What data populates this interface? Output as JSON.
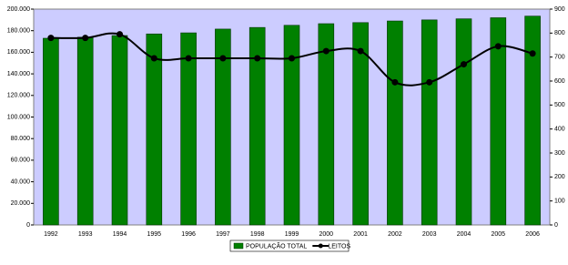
{
  "chart_data": {
    "type": "bar-line",
    "categories": [
      "1992",
      "1993",
      "1994",
      "1995",
      "1996",
      "1997",
      "1998",
      "1999",
      "2000",
      "2001",
      "2002",
      "2003",
      "2004",
      "2005",
      "2006"
    ],
    "series": [
      {
        "name": "POPULAÇÃO TOTAL",
        "color": "#008000",
        "type": "bar",
        "values": [
          173000,
          174000,
          175500,
          177000,
          178000,
          181500,
          183000,
          185000,
          186500,
          187500,
          189000,
          190000,
          191000,
          192000,
          193500
        ]
      },
      {
        "name": "LEITOS",
        "color": "#000000",
        "type": "line",
        "axis": "y2",
        "values": [
          780,
          780,
          795,
          695,
          695,
          695,
          695,
          695,
          725,
          725,
          595,
          595,
          670,
          745,
          715
        ]
      }
    ],
    "ylim": [
      0,
      200000
    ],
    "yticks": [
      0,
      {
        "value": 20000,
        "label": "20.000"
      },
      {
        "value": 40000,
        "label": "40.000"
      },
      {
        "value": 60000,
        "label": "60.000"
      },
      {
        "value": 80000,
        "label": "80.000"
      },
      {
        "value": 100000,
        "label": "100.000"
      },
      {
        "value": 120000,
        "label": "120.000"
      },
      {
        "value": 140000,
        "label": "140.000"
      },
      {
        "value": 160000,
        "label": "160.000"
      },
      {
        "value": 180000,
        "label": "180.000"
      },
      {
        "value": 200000,
        "label": "200.000"
      }
    ],
    "y2lim": [
      0,
      900
    ],
    "y2ticks": [
      0,
      100,
      200,
      300,
      400,
      500,
      600,
      700,
      800,
      900
    ],
    "legend": "bottom",
    "background": "#ccccff"
  }
}
